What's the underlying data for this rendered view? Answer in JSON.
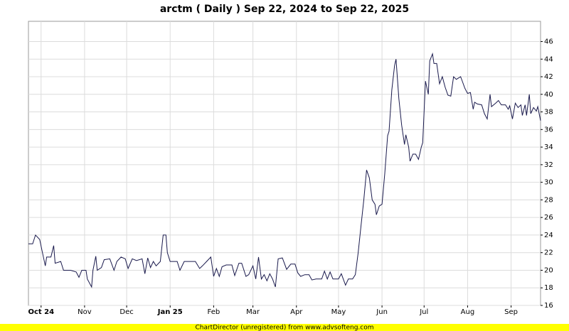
{
  "chart_data": {
    "type": "line",
    "title": "arctm ( Daily ) Sep 22, 2024 to Sep 22, 2025",
    "footer": "ChartDirector (unregistered) from www.advsofteng.com",
    "x": [
      0,
      3,
      5,
      8,
      10,
      12,
      13,
      16,
      18,
      19,
      23,
      25,
      30,
      34,
      36,
      38,
      41,
      42,
      45,
      46,
      48,
      49,
      52,
      54,
      58,
      61,
      63,
      66,
      69,
      71,
      74,
      77,
      81,
      83,
      85,
      87,
      89,
      91,
      94,
      96,
      98,
      99,
      101,
      104,
      106,
      108,
      111,
      114,
      119,
      122,
      124,
      127,
      130,
      132,
      134,
      136,
      138,
      141,
      145,
      147,
      150,
      152,
      155,
      157,
      160,
      162,
      164,
      166,
      168,
      170,
      172,
      174,
      176,
      178,
      181,
      184,
      187,
      190,
      192,
      194,
      197,
      200,
      202,
      205,
      209,
      211,
      213,
      215,
      217,
      221,
      223,
      226,
      228,
      231,
      233,
      235,
      237,
      239,
      241,
      243,
      245,
      247,
      248,
      250,
      252,
      254,
      256,
      257,
      259,
      261,
      262,
      264,
      266,
      268,
      269,
      271,
      272,
      274,
      276,
      278,
      280,
      281,
      283,
      285,
      286,
      288,
      289,
      291,
      293,
      295,
      297,
      299,
      301,
      303,
      305,
      308,
      309,
      311,
      313,
      315,
      317,
      318,
      320,
      323,
      325,
      327,
      329,
      330,
      333,
      335,
      337,
      340,
      342,
      343,
      345,
      347,
      349,
      351,
      352,
      354,
      355,
      357,
      358,
      360,
      362,
      363,
      365
    ],
    "series": [
      {
        "name": "arctm",
        "color": "#1a1a4d",
        "values": [
          23,
          23,
          24,
          23.5,
          22,
          20.5,
          21.5,
          21.5,
          22.8,
          20.8,
          21,
          20,
          20,
          19.8,
          19.2,
          20,
          20,
          19,
          18.1,
          20,
          21.6,
          20,
          20.3,
          21.2,
          21.3,
          20,
          21,
          21.5,
          21.3,
          20.2,
          21.3,
          21.1,
          21.3,
          19.6,
          21.4,
          20.3,
          21,
          20.5,
          21,
          24,
          24,
          22,
          21,
          21,
          21,
          20,
          21,
          21,
          21,
          20.2,
          20.5,
          21,
          21.5,
          19.3,
          20.2,
          19.3,
          20.4,
          20.6,
          20.6,
          19.4,
          20.8,
          20.8,
          19.3,
          19.5,
          20.5,
          19,
          21.5,
          19,
          19.5,
          18.8,
          19.6,
          19,
          18.1,
          21.3,
          21.4,
          20.1,
          20.7,
          20.7,
          19.7,
          19.3,
          19.5,
          19.5,
          18.9,
          19,
          19,
          19.9,
          19,
          19.8,
          19,
          19,
          19.6,
          18.3,
          19,
          19,
          19.5,
          22,
          25,
          28,
          31.4,
          30.5,
          28,
          27.5,
          26.3,
          27.3,
          27.5,
          31,
          35.3,
          35.8,
          40.5,
          43.3,
          44,
          39.5,
          36.5,
          34.3,
          35.4,
          34,
          32.4,
          33.2,
          33.2,
          32.6,
          34,
          34.5,
          41.5,
          40,
          43.8,
          44.6,
          43.5,
          43.5,
          41.2,
          42,
          40.8,
          39.9,
          39.8,
          42,
          41.7,
          42,
          41.6,
          40.7,
          40.1,
          40.2,
          38.3,
          39.1,
          38.9,
          38.8,
          37.8,
          37.2,
          40,
          38.6,
          39,
          39.3,
          38.8,
          38.8,
          38.3,
          38.7,
          37.2,
          39,
          38.5,
          38.8,
          37.6,
          38.8,
          37.6,
          40,
          37.8,
          38.5,
          38.1,
          38.6,
          37
        ]
      }
    ],
    "xlim": [
      0,
      365
    ],
    "xticks": [
      {
        "value": 9,
        "label": "Oct 24"
      },
      {
        "value": 40,
        "label": "Nov"
      },
      {
        "value": 70,
        "label": "Dec"
      },
      {
        "value": 101,
        "label": "Jan 25"
      },
      {
        "value": 132,
        "label": "Feb"
      },
      {
        "value": 160,
        "label": "Mar"
      },
      {
        "value": 191,
        "label": "Apr"
      },
      {
        "value": 221,
        "label": "May"
      },
      {
        "value": 252,
        "label": "Jun"
      },
      {
        "value": 282,
        "label": "Jul"
      },
      {
        "value": 313,
        "label": "Aug"
      },
      {
        "value": 344,
        "label": "Sep"
      }
    ],
    "ylim": [
      16,
      48.3
    ],
    "yticks": [
      16,
      18,
      20,
      22,
      24,
      26,
      28,
      30,
      32,
      34,
      36,
      38,
      40,
      42,
      44,
      46
    ],
    "grid": true
  }
}
